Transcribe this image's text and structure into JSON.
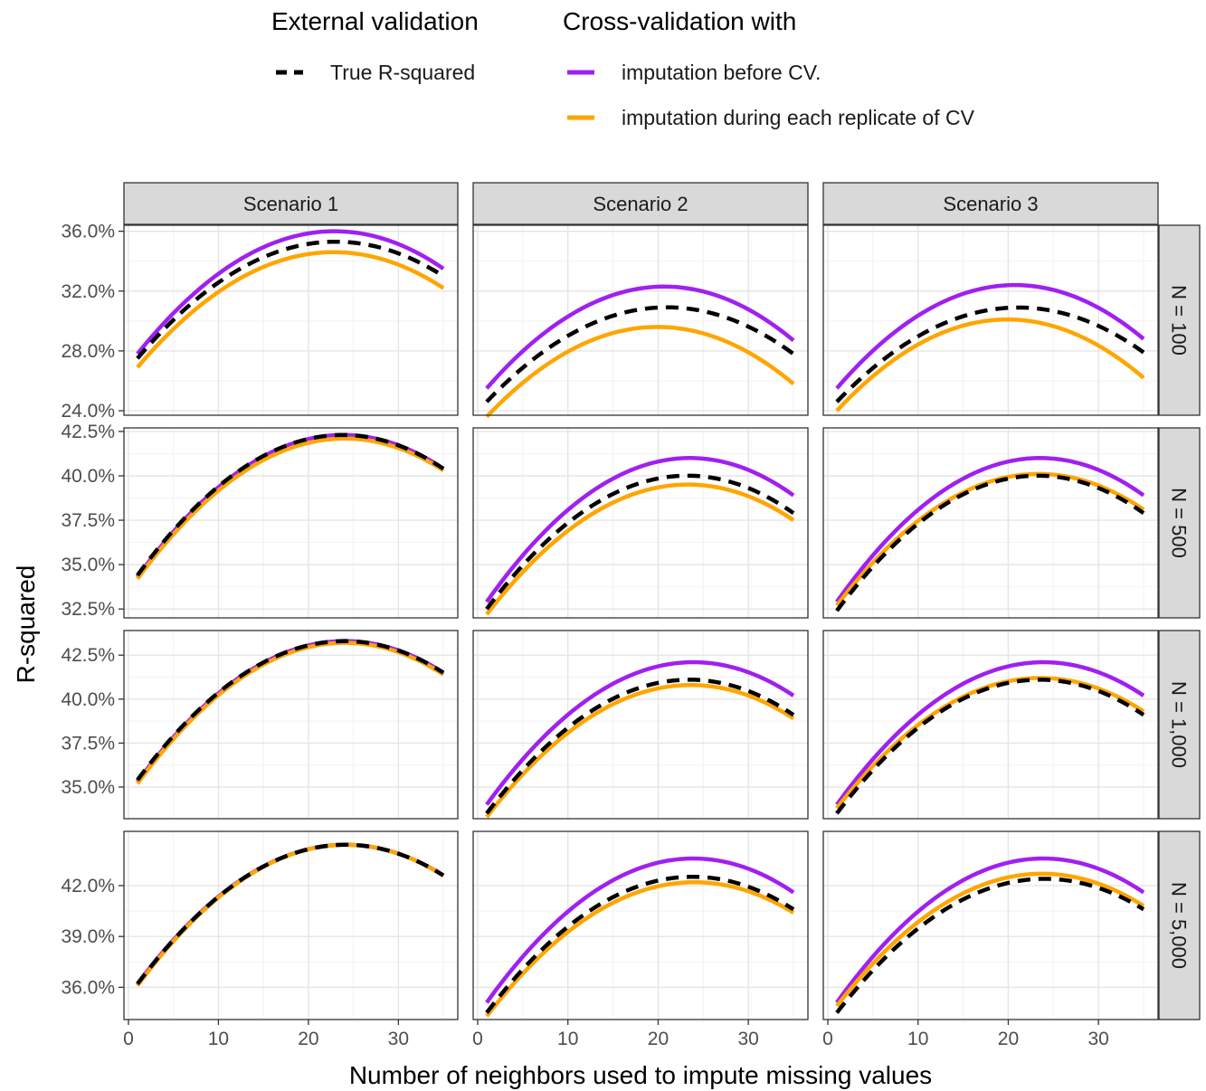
{
  "chart_data": {
    "type": "line",
    "layout": "faceted grid (4 rows x 3 columns)",
    "xlabel": "Number of neighbors used to impute missing values",
    "ylabel": "R-squared",
    "x_ticks": [
      0,
      10,
      20,
      30
    ],
    "x_range": [
      1,
      35
    ],
    "legend": {
      "placement": "top",
      "groups": [
        {
          "title": "External validation",
          "entries": [
            {
              "label": "True R-squared",
              "color": "#000000",
              "dashed": true
            }
          ]
        },
        {
          "title": "Cross-validation with",
          "entries": [
            {
              "label": "imputation before CV.",
              "color": "#A020F0",
              "dashed": false
            },
            {
              "label": "imputation during each replicate of CV",
              "color": "#FFA500",
              "dashed": false
            }
          ]
        }
      ]
    },
    "columns": [
      "Scenario 1",
      "Scenario 2",
      "Scenario 3"
    ],
    "rows": [
      {
        "label": "N =   100",
        "ylim": [
          23.7,
          36.4
        ],
        "y_ticks": [
          24.0,
          28.0,
          32.0,
          36.0
        ],
        "y_tick_labels": [
          "24.0%",
          "28.0%",
          "32.0%",
          "36.0%"
        ]
      },
      {
        "label": "N =   500",
        "ylim": [
          32.0,
          42.7
        ],
        "y_ticks": [
          32.5,
          35.0,
          37.5,
          40.0,
          42.5
        ],
        "y_tick_labels": [
          "32.5%",
          "35.0%",
          "37.5%",
          "40.0%",
          "42.5%"
        ]
      },
      {
        "label": "N = 1,000",
        "ylim": [
          33.2,
          43.9
        ],
        "y_ticks": [
          35.0,
          37.5,
          40.0,
          42.5
        ],
        "y_tick_labels": [
          "35.0%",
          "37.5%",
          "40.0%",
          "42.5%"
        ]
      },
      {
        "label": "N = 5,000",
        "ylim": [
          34.1,
          45.2
        ],
        "y_ticks": [
          36.0,
          39.0,
          42.0
        ],
        "y_tick_labels": [
          "36.0%",
          "39.0%",
          "42.0%"
        ]
      }
    ],
    "panels": [
      {
        "row": 0,
        "col": 0,
        "series": [
          {
            "name": "True R-squared",
            "x": [
              1,
              23,
              35
            ],
            "y": [
              27.5,
              35.3,
              33.0
            ]
          },
          {
            "name": "imputation before CV.",
            "x": [
              1,
              23,
              35
            ],
            "y": [
              27.8,
              36.0,
              33.5
            ]
          },
          {
            "name": "imputation during each replicate of CV",
            "x": [
              1,
              23,
              35
            ],
            "y": [
              26.9,
              34.6,
              32.2
            ]
          }
        ]
      },
      {
        "row": 0,
        "col": 1,
        "series": [
          {
            "name": "True R-squared",
            "x": [
              1,
              20,
              35
            ],
            "y": [
              24.6,
              30.9,
              27.8
            ]
          },
          {
            "name": "imputation before CV.",
            "x": [
              1,
              20.5,
              35
            ],
            "y": [
              25.5,
              32.3,
              28.7
            ]
          },
          {
            "name": "imputation during each replicate of CV",
            "x": [
              1,
              19.5,
              35
            ],
            "y": [
              23.6,
              29.6,
              25.8
            ]
          }
        ]
      },
      {
        "row": 0,
        "col": 2,
        "series": [
          {
            "name": "True R-squared",
            "x": [
              1,
              21,
              35
            ],
            "y": [
              24.6,
              30.9,
              27.9
            ]
          },
          {
            "name": "imputation before CV.",
            "x": [
              1,
              21,
              35
            ],
            "y": [
              25.5,
              32.4,
              28.8
            ]
          },
          {
            "name": "imputation during each replicate of CV",
            "x": [
              1,
              20,
              35
            ],
            "y": [
              24.0,
              30.1,
              26.2
            ]
          }
        ]
      },
      {
        "row": 1,
        "col": 0,
        "series": [
          {
            "name": "True R-squared",
            "x": [
              1,
              24,
              35
            ],
            "y": [
              34.4,
              42.3,
              40.4
            ]
          },
          {
            "name": "imputation before CV.",
            "x": [
              1,
              24,
              35
            ],
            "y": [
              34.3,
              42.3,
              40.4
            ]
          },
          {
            "name": "imputation during each replicate of CV",
            "x": [
              1,
              24,
              35
            ],
            "y": [
              34.2,
              42.1,
              40.3
            ]
          }
        ]
      },
      {
        "row": 1,
        "col": 1,
        "series": [
          {
            "name": "True R-squared",
            "x": [
              1,
              24,
              35
            ],
            "y": [
              32.5,
              40.0,
              37.9
            ]
          },
          {
            "name": "imputation before CV.",
            "x": [
              1,
              24,
              35
            ],
            "y": [
              32.9,
              41.0,
              38.9
            ]
          },
          {
            "name": "imputation during each replicate of CV",
            "x": [
              1,
              24,
              35
            ],
            "y": [
              32.2,
              39.5,
              37.5
            ]
          }
        ]
      },
      {
        "row": 1,
        "col": 2,
        "series": [
          {
            "name": "True R-squared",
            "x": [
              1,
              24,
              35
            ],
            "y": [
              32.4,
              40.0,
              37.9
            ]
          },
          {
            "name": "imputation before CV.",
            "x": [
              1,
              24,
              35
            ],
            "y": [
              32.9,
              41.0,
              38.9
            ]
          },
          {
            "name": "imputation during each replicate of CV",
            "x": [
              1,
              24,
              35
            ],
            "y": [
              32.7,
              40.1,
              38.1
            ]
          }
        ]
      },
      {
        "row": 2,
        "col": 0,
        "series": [
          {
            "name": "True R-squared",
            "x": [
              1,
              24,
              35
            ],
            "y": [
              35.4,
              43.3,
              41.5
            ]
          },
          {
            "name": "imputation before CV.",
            "x": [
              1,
              24,
              35
            ],
            "y": [
              35.3,
              43.3,
              41.5
            ]
          },
          {
            "name": "imputation during each replicate of CV",
            "x": [
              1,
              24,
              35
            ],
            "y": [
              35.2,
              43.2,
              41.4
            ]
          }
        ]
      },
      {
        "row": 2,
        "col": 1,
        "series": [
          {
            "name": "True R-squared",
            "x": [
              1,
              24,
              35
            ],
            "y": [
              33.5,
              41.1,
              39.1
            ]
          },
          {
            "name": "imputation before CV.",
            "x": [
              1,
              24,
              35
            ],
            "y": [
              34.0,
              42.1,
              40.2
            ]
          },
          {
            "name": "imputation during each replicate of CV",
            "x": [
              1,
              24,
              35
            ],
            "y": [
              33.3,
              40.8,
              38.9
            ]
          }
        ]
      },
      {
        "row": 2,
        "col": 2,
        "series": [
          {
            "name": "True R-squared",
            "x": [
              1,
              24,
              35
            ],
            "y": [
              33.5,
              41.1,
              39.1
            ]
          },
          {
            "name": "imputation before CV.",
            "x": [
              1,
              24,
              35
            ],
            "y": [
              34.0,
              42.1,
              40.2
            ]
          },
          {
            "name": "imputation during each replicate of CV",
            "x": [
              1,
              24,
              35
            ],
            "y": [
              33.8,
              41.2,
              39.3
            ]
          }
        ]
      },
      {
        "row": 3,
        "col": 0,
        "series": [
          {
            "name": "True R-squared",
            "x": [
              1,
              25,
              35
            ],
            "y": [
              36.2,
              44.4,
              42.6
            ]
          },
          {
            "name": "imputation before CV.",
            "x": [
              1,
              25,
              35
            ],
            "y": [
              36.2,
              44.4,
              42.6
            ]
          },
          {
            "name": "imputation during each replicate of CV",
            "x": [
              1,
              25,
              35
            ],
            "y": [
              36.1,
              44.4,
              42.6
            ]
          }
        ]
      },
      {
        "row": 3,
        "col": 1,
        "series": [
          {
            "name": "True R-squared",
            "x": [
              1,
              25,
              35
            ],
            "y": [
              34.5,
              42.5,
              40.6
            ]
          },
          {
            "name": "imputation before CV.",
            "x": [
              1,
              24,
              35
            ],
            "y": [
              35.1,
              43.6,
              41.6
            ]
          },
          {
            "name": "imputation during each replicate of CV",
            "x": [
              1,
              24,
              35
            ],
            "y": [
              34.3,
              42.2,
              40.4
            ]
          }
        ]
      },
      {
        "row": 3,
        "col": 2,
        "series": [
          {
            "name": "True R-squared",
            "x": [
              1,
              24,
              35
            ],
            "y": [
              34.5,
              42.4,
              40.6
            ]
          },
          {
            "name": "imputation before CV.",
            "x": [
              1,
              24,
              35
            ],
            "y": [
              35.1,
              43.6,
              41.6
            ]
          },
          {
            "name": "imputation during each replicate of CV",
            "x": [
              1,
              24,
              35
            ],
            "y": [
              34.9,
              42.7,
              40.8
            ]
          }
        ]
      }
    ]
  }
}
